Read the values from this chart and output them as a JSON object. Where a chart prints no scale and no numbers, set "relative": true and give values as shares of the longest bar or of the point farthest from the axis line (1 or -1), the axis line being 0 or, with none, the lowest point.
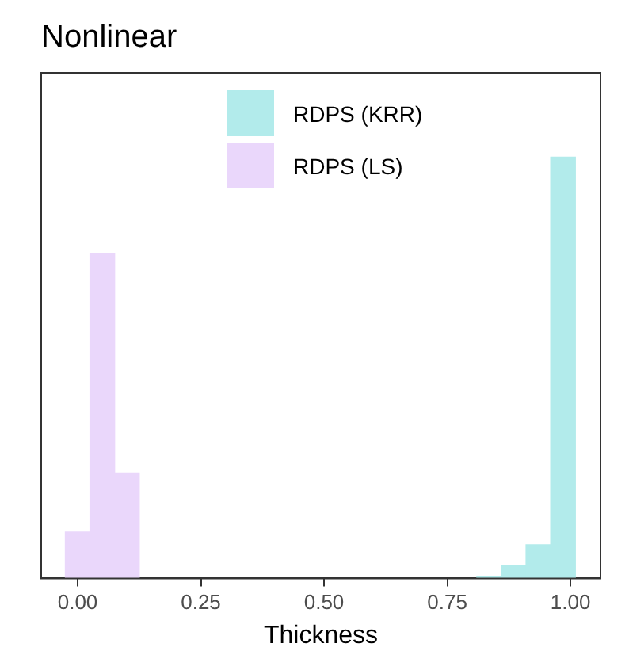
{
  "chart_data": {
    "type": "bar",
    "title": "Nonlinear",
    "xlabel": "Thickness",
    "relative": true,
    "xlim": [
      -0.074,
      1.061
    ],
    "xticks": [
      {
        "value": 0,
        "label": "0.00"
      },
      {
        "value": 0.25,
        "label": "0.25"
      },
      {
        "value": 0.5,
        "label": "0.50"
      },
      {
        "value": 0.75,
        "label": "0.75"
      },
      {
        "value": 1,
        "label": "1.00"
      }
    ],
    "legend": "top",
    "series": [
      {
        "name": "RDPS (KRR)",
        "color": "#b2ebeb",
        "x": [
          0.835,
          0.885,
          0.935,
          0.985
        ],
        "values": [
          0.005,
          0.03,
          0.08,
          1
        ]
      },
      {
        "name": "RDPS (LS)",
        "color": "#ead7fb",
        "x": [
          0,
          0.05,
          0.1
        ],
        "values": [
          0.11,
          0.77,
          0.25
        ]
      }
    ]
  }
}
